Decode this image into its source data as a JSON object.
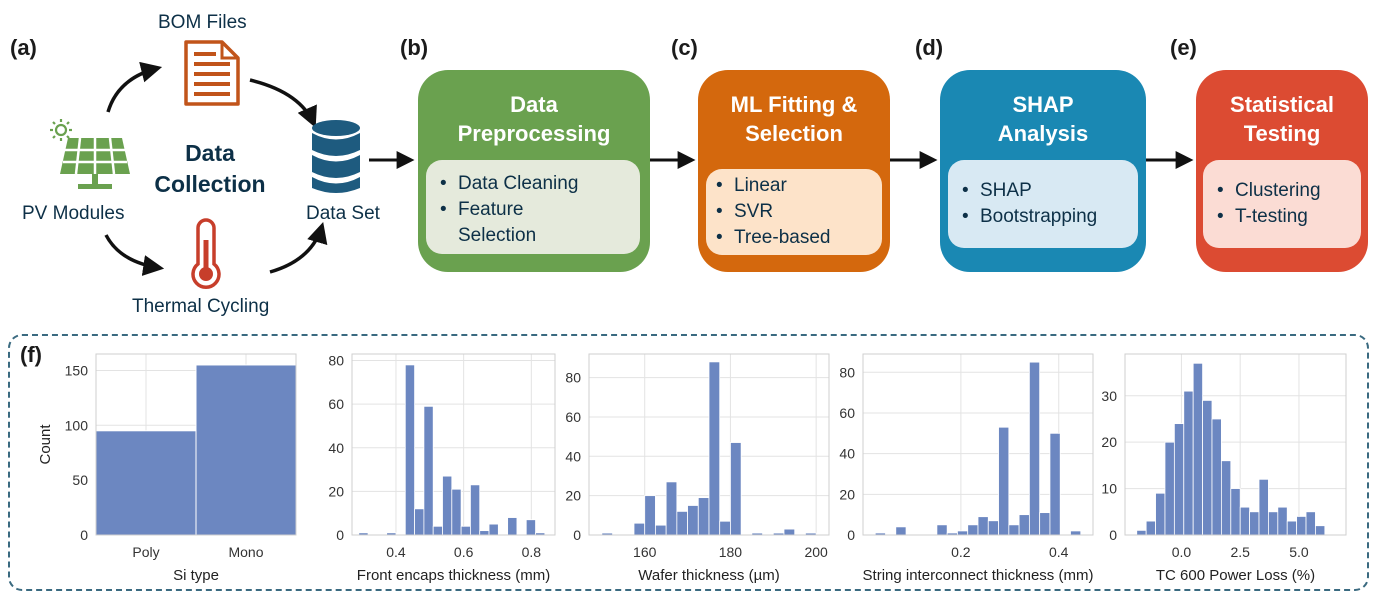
{
  "colors": {
    "preprocessing": "#6aa14f",
    "ml": "#d4680d",
    "shap": "#1a88b3",
    "stats": "#dc4b32",
    "dark_blue": "#1e5b7f",
    "bar": "#6c87c1"
  },
  "panel_a": {
    "letter": "(a)",
    "title": "Data Collection",
    "nodes": {
      "bom": "BOM Files",
      "pv": "PV Modules",
      "thermal": "Thermal Cycling",
      "dataset": "Data Set"
    },
    "icons": [
      "document-icon",
      "solar-panel-icon",
      "sun-icon",
      "thermometer-icon",
      "database-icon"
    ]
  },
  "steps": [
    {
      "letter": "(b)",
      "title": "Data Preprocessing",
      "items": [
        "Data Cleaning",
        "Feature Selection"
      ]
    },
    {
      "letter": "(c)",
      "title": "ML Fitting & Selection",
      "items": [
        "Linear",
        "SVR",
        "Tree-based"
      ]
    },
    {
      "letter": "(d)",
      "title": "SHAP Analysis",
      "items": [
        "SHAP",
        "Bootstrapping"
      ]
    },
    {
      "letter": "(e)",
      "title": "Statistical Testing",
      "items": [
        "Clustering",
        "T-testing"
      ]
    }
  ],
  "panel_f": {
    "letter": "(f)",
    "chart_data": [
      {
        "type": "bar",
        "xlabel": "Si type",
        "ylabel": "Count",
        "categories": [
          "Poly",
          "Mono"
        ],
        "values": [
          95,
          155
        ],
        "ylim": [
          0,
          165
        ],
        "yticks": [
          0,
          50,
          100,
          150
        ]
      },
      {
        "type": "histogram",
        "xlabel": "Front encaps thickness (mm)",
        "xlim": [
          0.27,
          0.87
        ],
        "ylim": [
          0,
          83
        ],
        "xticks": [
          0.4,
          0.6,
          0.8
        ],
        "xtick_labels": [
          "0.4",
          "0.6",
          "0.8"
        ],
        "yticks": [
          0,
          20,
          40,
          60,
          80
        ],
        "bin_start": 0.29,
        "bin_width": 0.0275,
        "counts": [
          1,
          0,
          0,
          1,
          0,
          78,
          12,
          59,
          4,
          27,
          21,
          4,
          23,
          2,
          5,
          0,
          8,
          0,
          7,
          1
        ]
      },
      {
        "type": "histogram",
        "xlabel": "Wafer thickness (µm)",
        "xlim": [
          147,
          203
        ],
        "ylim": [
          0,
          92
        ],
        "xticks": [
          160,
          180,
          200
        ],
        "xtick_labels": [
          "160",
          "180",
          "200"
        ],
        "yticks": [
          0,
          20,
          40,
          60,
          80
        ],
        "bin_start": 150,
        "bin_width": 2.5,
        "counts": [
          1,
          0,
          0,
          6,
          20,
          5,
          27,
          12,
          15,
          19,
          88,
          7,
          47,
          0,
          1,
          0,
          1,
          3,
          0,
          1
        ]
      },
      {
        "type": "histogram",
        "xlabel": "String interconnect thickness (mm)",
        "xlim": [
          0.0,
          0.47
        ],
        "ylim": [
          0,
          89
        ],
        "xticks": [
          0.2,
          0.4
        ],
        "xtick_labels": [
          "0.2",
          "0.4"
        ],
        "yticks": [
          0,
          20,
          40,
          60,
          80
        ],
        "bin_start": 0.025,
        "bin_width": 0.021,
        "counts": [
          1,
          0,
          4,
          0,
          0,
          0,
          5,
          1,
          2,
          5,
          9,
          7,
          53,
          5,
          10,
          85,
          11,
          50,
          0,
          2
        ]
      },
      {
        "type": "histogram",
        "xlabel": "TC 600 Power Loss (%)",
        "xlim": [
          -2.4,
          7.0
        ],
        "ylim": [
          0,
          39
        ],
        "xticks": [
          0,
          2.5,
          5
        ],
        "xtick_labels": [
          "0.0",
          "2.5",
          "5.0"
        ],
        "yticks": [
          0,
          10,
          20,
          30
        ],
        "bin_start": -1.9,
        "bin_width": 0.4,
        "counts": [
          1,
          3,
          9,
          20,
          24,
          31,
          37,
          29,
          25,
          16,
          10,
          6,
          5,
          12,
          5,
          6,
          3,
          4,
          5,
          2
        ]
      }
    ]
  }
}
